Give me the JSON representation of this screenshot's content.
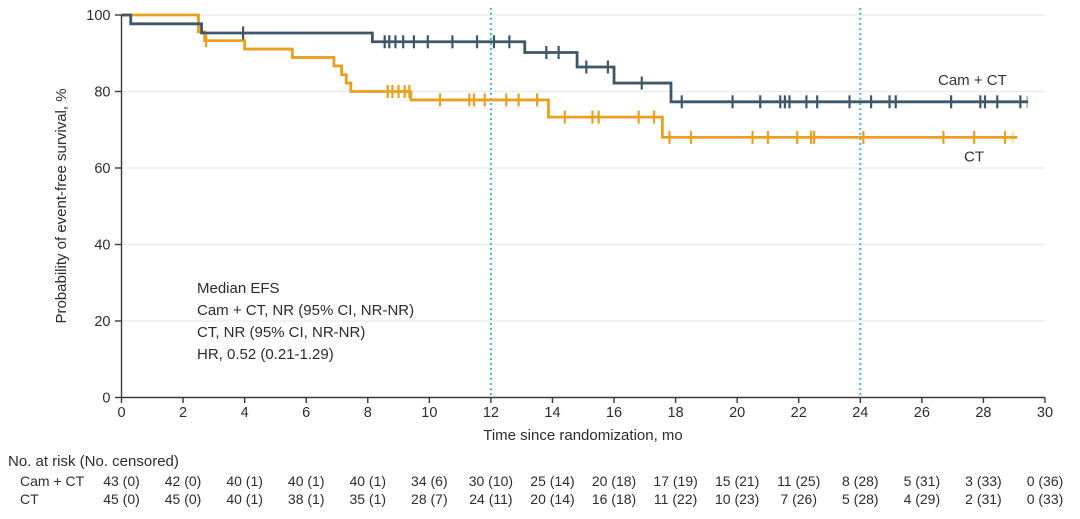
{
  "chart_data": {
    "type": "line",
    "subtype": "kaplan-meier-step",
    "title": "",
    "xlabel": "Time since randomization, mo",
    "ylabel": "Probability of event-free survival, %",
    "xlim": [
      0,
      30
    ],
    "ylim": [
      0,
      100
    ],
    "xticks": [
      0,
      2,
      4,
      6,
      8,
      10,
      12,
      14,
      16,
      18,
      20,
      22,
      24,
      26,
      28,
      30
    ],
    "yticks": [
      0,
      20,
      40,
      60,
      80,
      100
    ],
    "grid": "horizontal-light",
    "reference_lines_x": [
      12,
      24
    ],
    "series": [
      {
        "name": "Cam + CT",
        "color": "#3e5668",
        "steps": [
          [
            0,
            100
          ],
          [
            0.3,
            97.7
          ],
          [
            2.6,
            95.3
          ],
          [
            8.15,
            93.0
          ],
          [
            13.1,
            90.2
          ],
          [
            14.8,
            86.4
          ],
          [
            16.0,
            82.2
          ],
          [
            17.85,
            77.3
          ]
        ],
        "end_time": 29.45,
        "censors": [
          [
            3.95,
            95.3
          ],
          [
            8.55,
            93.0
          ],
          [
            8.7,
            93.0
          ],
          [
            8.9,
            93.0
          ],
          [
            9.15,
            93.0
          ],
          [
            9.5,
            93.0
          ],
          [
            9.95,
            93.0
          ],
          [
            10.75,
            93.0
          ],
          [
            11.55,
            93.0
          ],
          [
            12.1,
            93.0
          ],
          [
            12.6,
            93.0
          ],
          [
            13.8,
            90.2
          ],
          [
            14.2,
            90.2
          ],
          [
            15.1,
            86.4
          ],
          [
            15.8,
            86.4
          ],
          [
            16.9,
            82.2
          ],
          [
            18.2,
            77.3
          ],
          [
            19.85,
            77.3
          ],
          [
            20.75,
            77.3
          ],
          [
            21.4,
            77.3
          ],
          [
            21.55,
            77.3
          ],
          [
            21.7,
            77.3
          ],
          [
            22.25,
            77.3
          ],
          [
            22.6,
            77.3
          ],
          [
            23.65,
            77.3
          ],
          [
            24.35,
            77.3
          ],
          [
            24.95,
            77.3
          ],
          [
            25.15,
            77.3
          ],
          [
            26.95,
            77.3
          ],
          [
            27.9,
            77.3
          ],
          [
            28.05,
            77.3
          ],
          [
            28.45,
            77.3
          ],
          [
            29.2,
            77.3
          ]
        ],
        "faded_censors": [
          [
            29.42,
            77.3
          ]
        ]
      },
      {
        "name": "CT",
        "color": "#eaa01e",
        "steps": [
          [
            0,
            100
          ],
          [
            2.5,
            95.6
          ],
          [
            2.7,
            93.3
          ],
          [
            4.0,
            91.1
          ],
          [
            5.55,
            88.9
          ],
          [
            6.9,
            86.7
          ],
          [
            7.15,
            84.4
          ],
          [
            7.3,
            82.2
          ],
          [
            7.45,
            80.0
          ],
          [
            9.4,
            77.8
          ],
          [
            13.87,
            73.3
          ],
          [
            17.57,
            68.0
          ]
        ],
        "end_time": 29.1,
        "censors": [
          [
            2.75,
            93.3
          ],
          [
            8.65,
            80.0
          ],
          [
            8.8,
            80.0
          ],
          [
            9.0,
            80.0
          ],
          [
            9.2,
            80.0
          ],
          [
            9.35,
            80.0
          ],
          [
            10.35,
            77.8
          ],
          [
            11.3,
            77.8
          ],
          [
            11.45,
            77.8
          ],
          [
            11.8,
            77.8
          ],
          [
            12.5,
            77.8
          ],
          [
            12.9,
            77.8
          ],
          [
            13.5,
            77.8
          ],
          [
            14.4,
            73.3
          ],
          [
            15.3,
            73.3
          ],
          [
            15.5,
            73.3
          ],
          [
            16.8,
            73.3
          ],
          [
            17.3,
            73.3
          ],
          [
            17.8,
            68.0
          ],
          [
            18.5,
            68.0
          ],
          [
            20.5,
            68.0
          ],
          [
            21.0,
            68.0
          ],
          [
            21.95,
            68.0
          ],
          [
            22.4,
            68.0
          ],
          [
            22.5,
            68.0
          ],
          [
            24.1,
            68.0
          ],
          [
            26.7,
            68.0
          ],
          [
            27.7,
            68.0
          ],
          [
            28.7,
            68.0
          ]
        ],
        "faded_censors": [
          [
            28.95,
            68.0
          ]
        ]
      }
    ],
    "curve_labels": [
      {
        "text": "Cam + CT",
        "series": 0
      },
      {
        "text": "CT",
        "series": 1
      }
    ],
    "annotation": {
      "lines": [
        "Median EFS",
        "Cam + CT, NR (95% CI, NR-NR)",
        "CT, NR (95% CI, NR-NR)",
        "HR, 0.52 (0.21-1.29)"
      ]
    },
    "risk_table": {
      "header": "No. at risk (No. censored)",
      "times": [
        0,
        2,
        4,
        6,
        8,
        10,
        12,
        14,
        16,
        18,
        20,
        22,
        24,
        26,
        28,
        30
      ],
      "rows": [
        {
          "label": "Cam + CT",
          "values": [
            "43 (0)",
            "42 (0)",
            "40 (1)",
            "40 (1)",
            "40 (1)",
            "34 (6)",
            "30 (10)",
            "25 (14)",
            "20 (18)",
            "17 (19)",
            "15 (21)",
            "11 (25)",
            "8 (28)",
            "5 (31)",
            "3 (33)",
            "0 (36)"
          ]
        },
        {
          "label": "CT",
          "values": [
            "45 (0)",
            "45 (0)",
            "40 (1)",
            "38 (1)",
            "35 (1)",
            "28 (7)",
            "24 (11)",
            "20 (14)",
            "16 (18)",
            "11 (22)",
            "10 (23)",
            "7 (26)",
            "5 (28)",
            "4 (29)",
            "2 (31)",
            "0 (33)"
          ]
        }
      ]
    },
    "colors": {
      "cam_ct": "#3e5668",
      "ct": "#eaa01e",
      "reference_line": "#45b5e8",
      "grid": "#e9e9e9",
      "axis": "#3a3a3a",
      "text": "#2d2d2d"
    }
  }
}
